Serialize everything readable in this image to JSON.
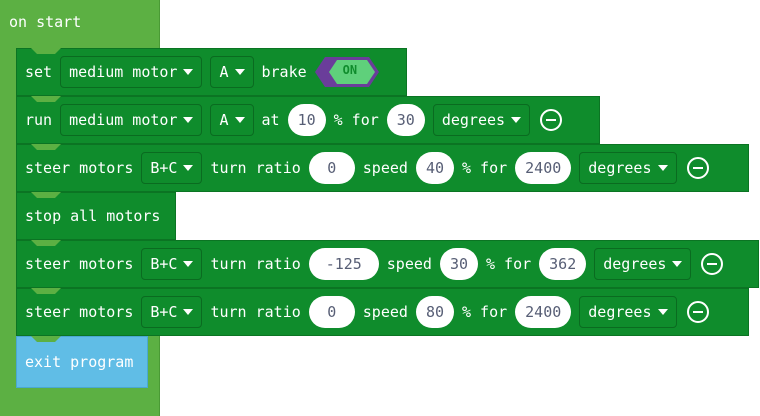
{
  "hat": {
    "label": "on start"
  },
  "blocks": {
    "b1": {
      "set": "set",
      "motor": "medium motor",
      "port": "A",
      "brake": "brake",
      "toggle": "ON"
    },
    "b2": {
      "run": "run",
      "motor": "medium motor",
      "port": "A",
      "at": "at",
      "speed": "10",
      "pct_for": "% for",
      "amount": "30",
      "unit": "degrees"
    },
    "b3": {
      "steer": "steer motors",
      "ports": "B+C",
      "turn_ratio": "turn ratio",
      "ratio": "0",
      "speed_lbl": "speed",
      "speed": "40",
      "pct_for": "% for",
      "amount": "2400",
      "unit": "degrees"
    },
    "b4": {
      "label": "stop all motors"
    },
    "b5": {
      "steer": "steer motors",
      "ports": "B+C",
      "turn_ratio": "turn ratio",
      "ratio": "-125",
      "speed_lbl": "speed",
      "speed": "30",
      "pct_for": "% for",
      "amount": "362",
      "unit": "degrees"
    },
    "b6": {
      "steer": "steer motors",
      "ports": "B+C",
      "turn_ratio": "turn ratio",
      "ratio": "0",
      "speed_lbl": "speed",
      "speed": "80",
      "pct_for": "% for",
      "amount": "2400",
      "unit": "degrees"
    },
    "b7": {
      "label": "exit program"
    }
  },
  "colors": {
    "event_hat": "#5cb043",
    "motor_block": "#0f8c2c",
    "control_block": "#60bde6",
    "toggle_purple": "#6a3d9a",
    "toggle_on": "#5fd07b"
  },
  "icons": {
    "remove": "minus-circle-icon",
    "dropdown": "chevron-down-icon"
  }
}
